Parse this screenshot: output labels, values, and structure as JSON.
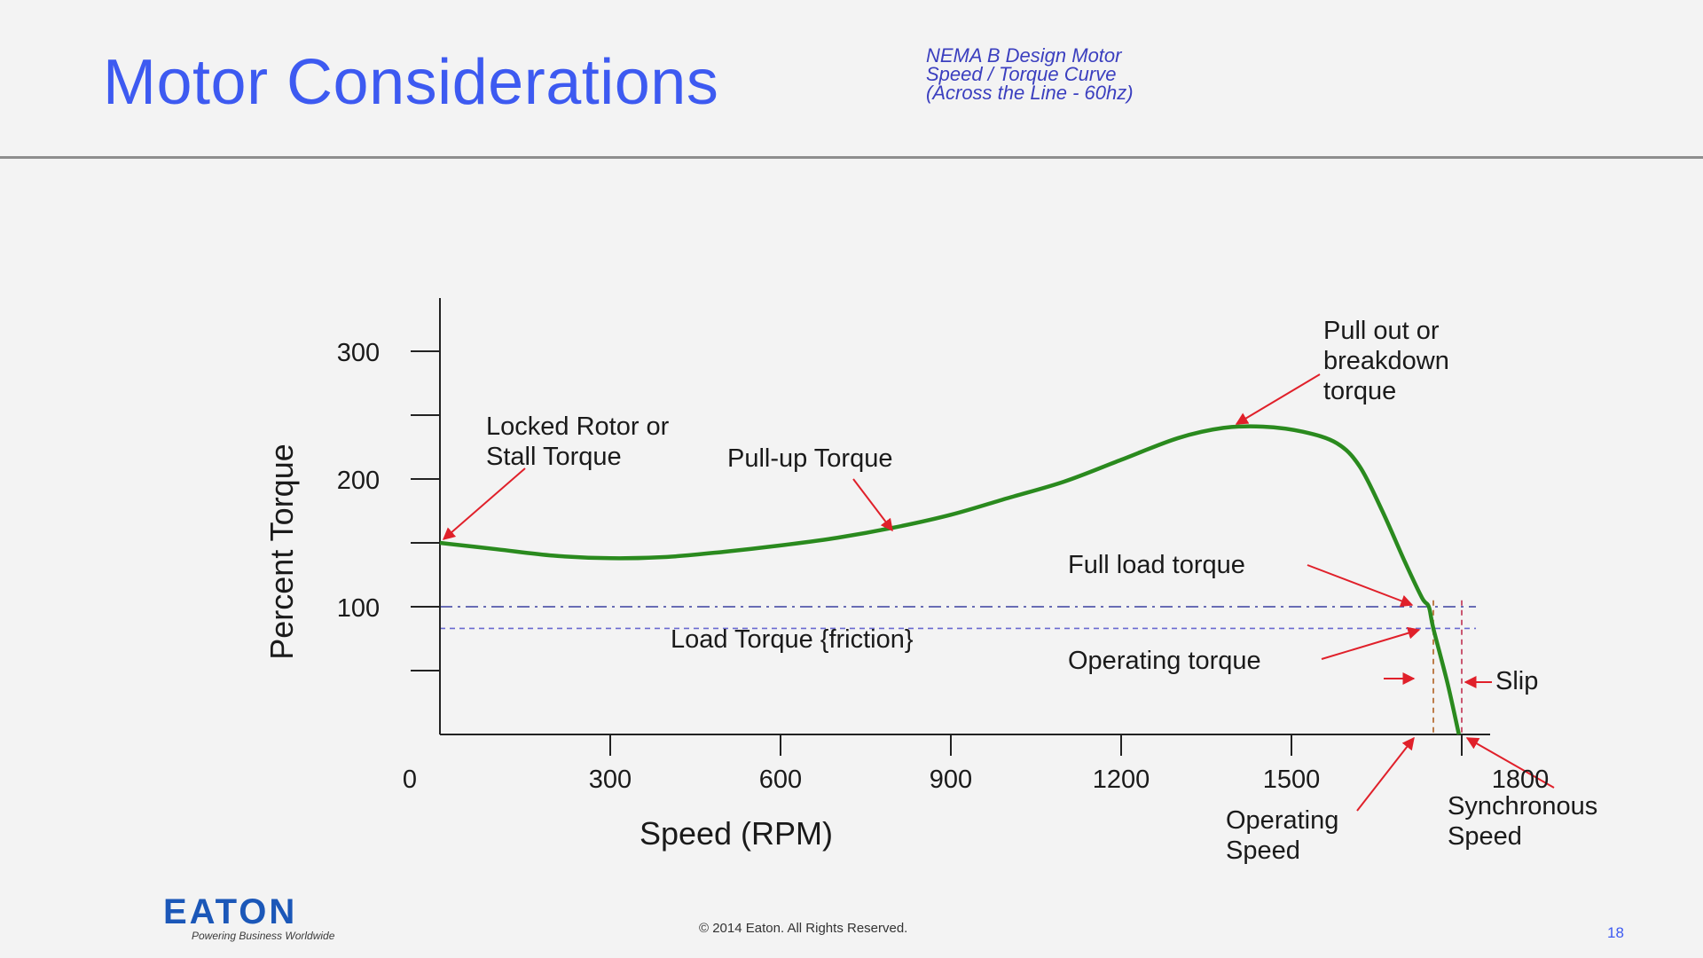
{
  "slide": {
    "title": "Motor Considerations",
    "subtitle_lines": [
      "NEMA B Design Motor",
      "Speed / Torque Curve",
      "(Across the Line - 60hz)"
    ],
    "logo_text": "EATON",
    "logo_tagline": "Powering Business Worldwide",
    "copyright": "© 2014 Eaton. All Rights Reserved.",
    "page_number": "18"
  },
  "chart_data": {
    "type": "line",
    "xlabel": "Speed (RPM)",
    "ylabel": "Percent Torque",
    "xlim": [
      0,
      1800
    ],
    "ylim": [
      0,
      300
    ],
    "x_ticks": [
      "0",
      "300",
      "600",
      "900",
      "1200",
      "1500",
      "1800"
    ],
    "y_ticks": [
      "300",
      "200",
      "100"
    ],
    "y_minor_ticks": [
      50,
      150,
      250
    ],
    "series": [
      {
        "color": "#2a8a1e",
        "points": [
          [
            0,
            150
          ],
          [
            100,
            145
          ],
          [
            200,
            140
          ],
          [
            300,
            138
          ],
          [
            400,
            139
          ],
          [
            500,
            143
          ],
          [
            600,
            148
          ],
          [
            700,
            154
          ],
          [
            800,
            162
          ],
          [
            900,
            172
          ],
          [
            1000,
            185
          ],
          [
            1100,
            198
          ],
          [
            1200,
            215
          ],
          [
            1300,
            232
          ],
          [
            1380,
            240
          ],
          [
            1450,
            241
          ],
          [
            1520,
            237
          ],
          [
            1580,
            228
          ],
          [
            1620,
            210
          ],
          [
            1660,
            175
          ],
          [
            1700,
            135
          ],
          [
            1730,
            107
          ],
          [
            1742,
            100
          ],
          [
            1750,
            83
          ],
          [
            1775,
            40
          ],
          [
            1795,
            0
          ]
        ]
      }
    ],
    "reference_lines": [
      {
        "kind": "horizontal",
        "y": 100,
        "style": "dash-dot",
        "color": "#3b3f9f"
      },
      {
        "kind": "horizontal",
        "y": 83,
        "style": "dashed",
        "color": "#6a6ad0"
      },
      {
        "kind": "vertical",
        "x": 1750,
        "style": "dashed",
        "color": "#b06020"
      },
      {
        "kind": "vertical",
        "x": 1800,
        "style": "dashed",
        "color": "#c03050"
      }
    ],
    "annotations": [
      {
        "lines": [
          "Locked Rotor or",
          "Stall Torque"
        ]
      },
      {
        "lines": [
          "Pull-up Torque"
        ]
      },
      {
        "lines": [
          "Pull out or",
          "breakdown",
          "torque"
        ]
      },
      {
        "lines": [
          "Full load torque"
        ]
      },
      {
        "lines": [
          "Load Torque {friction}"
        ]
      },
      {
        "lines": [
          "Operating torque"
        ]
      },
      {
        "lines": [
          "Slip"
        ]
      },
      {
        "lines": [
          "Operating",
          "Speed"
        ]
      },
      {
        "lines": [
          "Synchronous",
          "Speed"
        ]
      }
    ],
    "arrow_color": "#e0202a"
  }
}
